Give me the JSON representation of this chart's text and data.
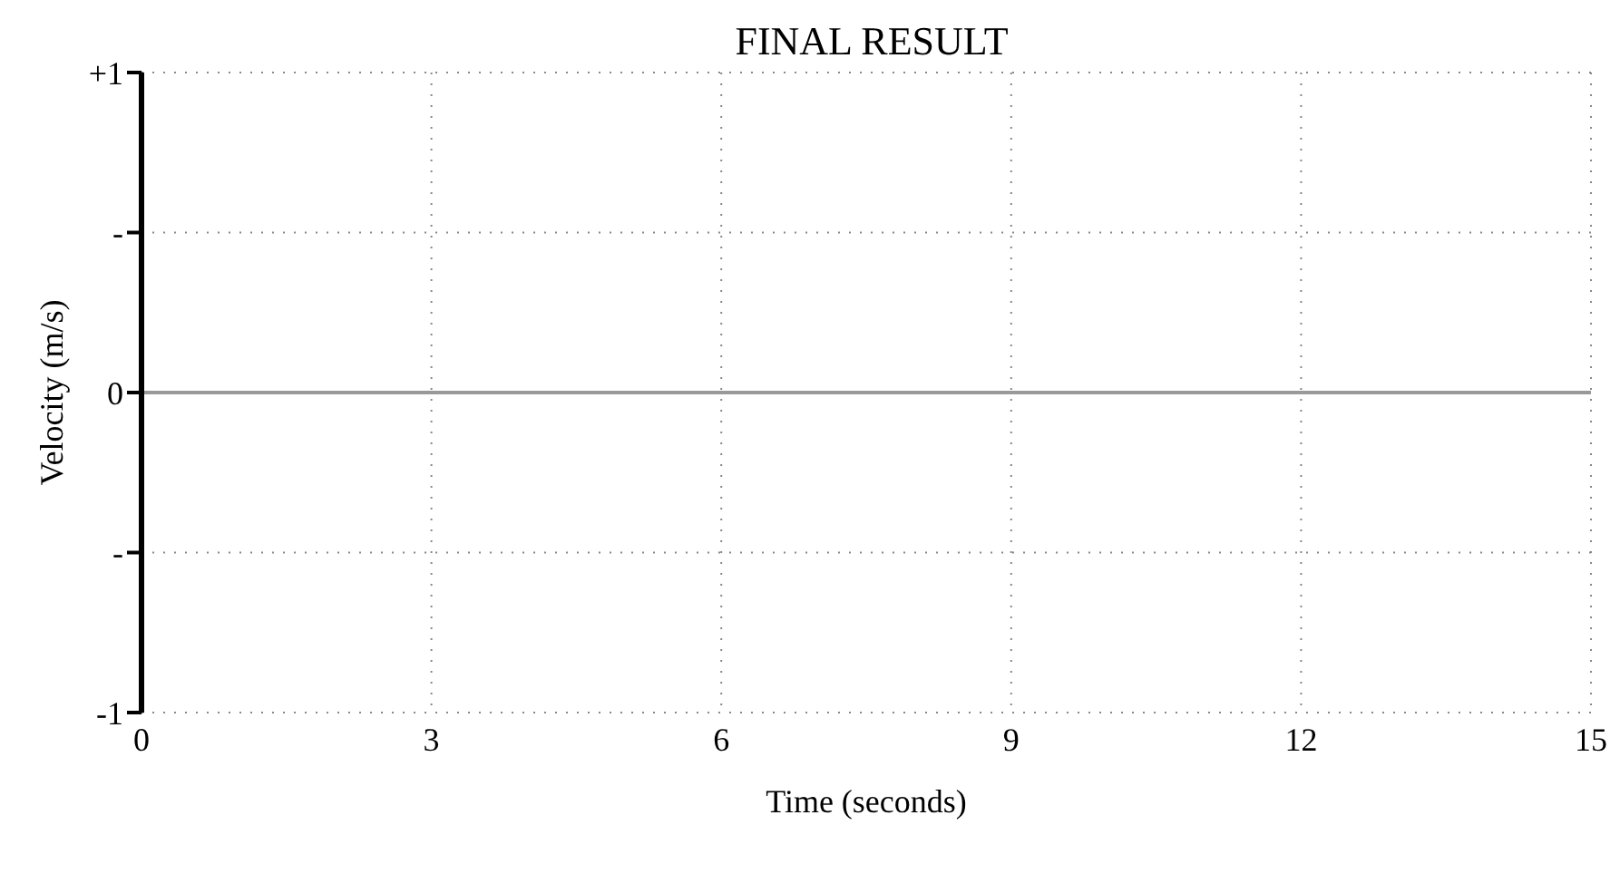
{
  "chart_data": {
    "type": "line",
    "title": "FINAL RESULT",
    "xlabel": "Time (seconds)",
    "ylabel": "Velocity (m/s)",
    "x": [
      0,
      15
    ],
    "series": [
      {
        "color": "#999999",
        "values": [
          0,
          0
        ]
      }
    ],
    "xlim": [
      0,
      15
    ],
    "xticks": [
      0,
      3,
      6,
      9,
      12,
      15
    ],
    "ylim": [
      -1,
      1
    ],
    "yticks": [
      {
        "value": -1,
        "label": "-1"
      },
      {
        "value": -0.5,
        "label": "-"
      },
      0,
      {
        "value": 0.5,
        "label": "-"
      },
      {
        "value": 1,
        "label": "+1"
      }
    ],
    "grid": true,
    "marker": "none",
    "line_style": "solid",
    "legend": false
  }
}
